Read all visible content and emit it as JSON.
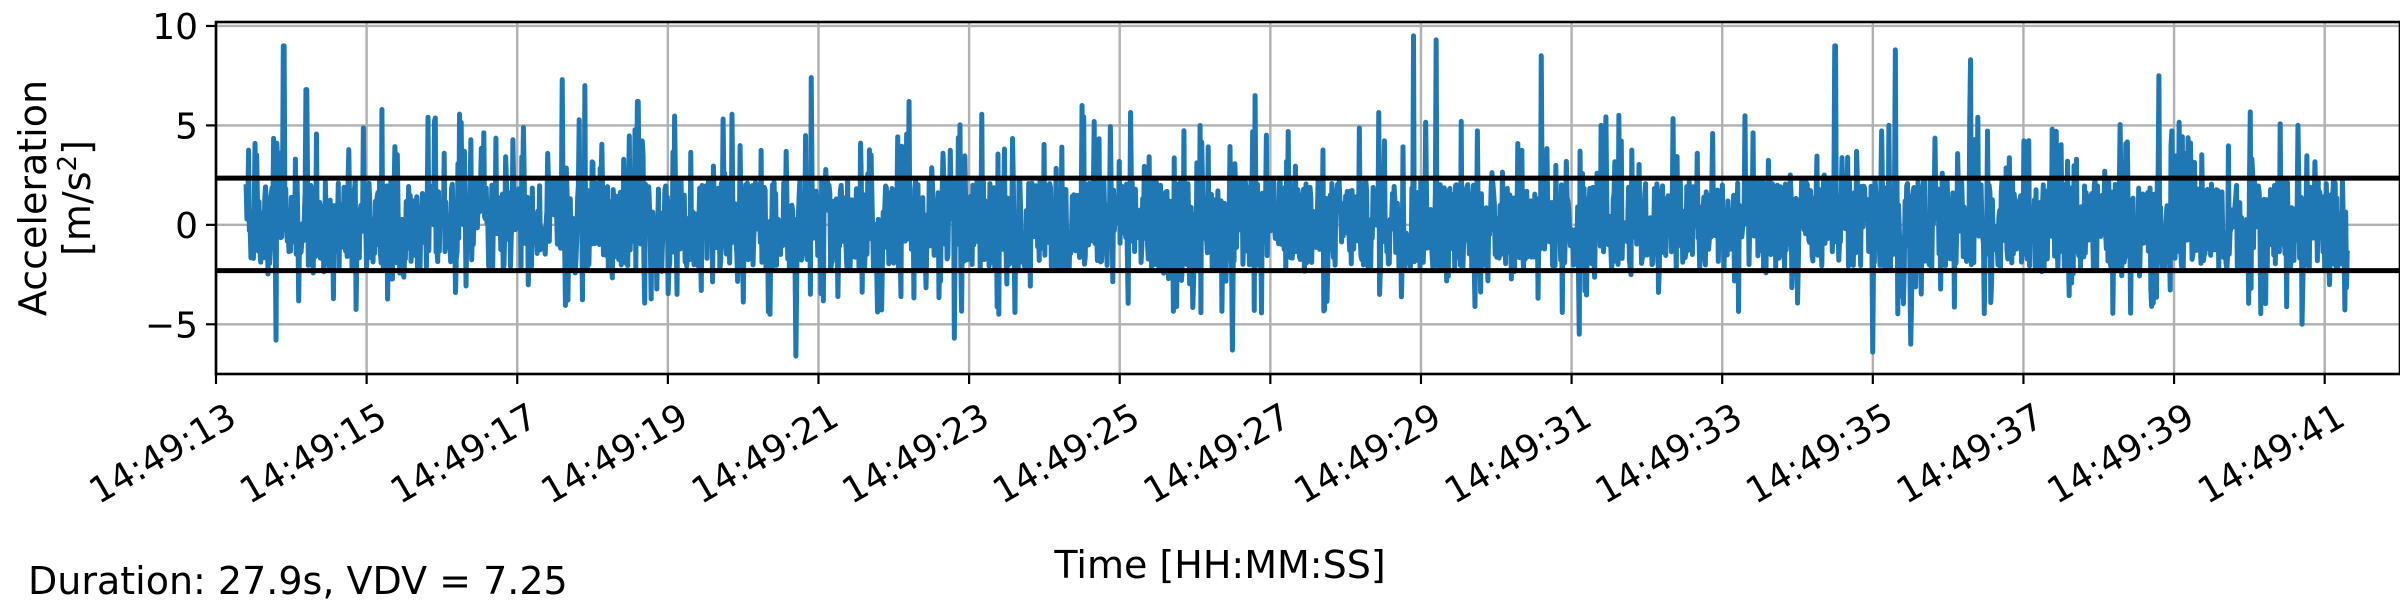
{
  "chart_data": {
    "type": "line",
    "title": "",
    "xlabel": "Time [HH:MM:SS]",
    "ylabel_line1": "Acceleration",
    "ylabel_line2_base": "[m/s",
    "ylabel_line2_sup": "2",
    "ylabel_line2_close": "]",
    "xlim_seconds": [
      13.0,
      42.0
    ],
    "ylim": [
      -7.5,
      10.2
    ],
    "x_ticks": [
      "14:49:13",
      "14:49:15",
      "14:49:17",
      "14:49:19",
      "14:49:21",
      "14:49:23",
      "14:49:25",
      "14:49:27",
      "14:49:29",
      "14:49:31",
      "14:49:33",
      "14:49:35",
      "14:49:37",
      "14:49:39",
      "14:49:41"
    ],
    "x_tick_seconds": [
      13,
      15,
      17,
      19,
      21,
      23,
      25,
      27,
      29,
      31,
      33,
      35,
      37,
      39,
      41
    ],
    "y_ticks": [
      10,
      5,
      0,
      -5
    ],
    "y_tick_labels": [
      "10",
      "5",
      "0",
      "−5"
    ],
    "grid": true,
    "series_color": "#1f77b4",
    "threshold_color": "#000000",
    "thresholds": [
      2.35,
      -2.3
    ],
    "signal": {
      "start_seconds": 13.4,
      "end_seconds": 41.3,
      "peak_max": 9.5,
      "peak_min": -6.6,
      "notable_peaks": [
        {
          "t": 13.9,
          "v": 9.0
        },
        {
          "t": 14.2,
          "v": 6.8
        },
        {
          "t": 15.2,
          "v": 5.8
        },
        {
          "t": 17.6,
          "v": 7.3
        },
        {
          "t": 17.9,
          "v": 7.0
        },
        {
          "t": 18.6,
          "v": 6.2
        },
        {
          "t": 20.9,
          "v": 7.4
        },
        {
          "t": 22.2,
          "v": 6.2
        },
        {
          "t": 24.5,
          "v": 6.0
        },
        {
          "t": 26.8,
          "v": 6.5
        },
        {
          "t": 28.9,
          "v": 9.5
        },
        {
          "t": 29.2,
          "v": 9.3
        },
        {
          "t": 30.6,
          "v": 8.5
        },
        {
          "t": 34.5,
          "v": 9.0
        },
        {
          "t": 35.3,
          "v": 8.8
        },
        {
          "t": 36.3,
          "v": 8.3
        },
        {
          "t": 38.8,
          "v": 7.5
        },
        {
          "t": 40.7,
          "v": 6.5
        },
        {
          "t": 13.8,
          "v": -5.8
        },
        {
          "t": 20.7,
          "v": -6.6
        },
        {
          "t": 22.8,
          "v": -5.7
        },
        {
          "t": 26.5,
          "v": -6.3
        },
        {
          "t": 31.1,
          "v": -5.5
        },
        {
          "t": 35.0,
          "v": -6.4
        },
        {
          "t": 35.5,
          "v": -6.0
        },
        {
          "t": 40.7,
          "v": -5.0
        }
      ]
    }
  },
  "footer": {
    "summary": "Duration: 27.9s, VDV = 7.25"
  }
}
